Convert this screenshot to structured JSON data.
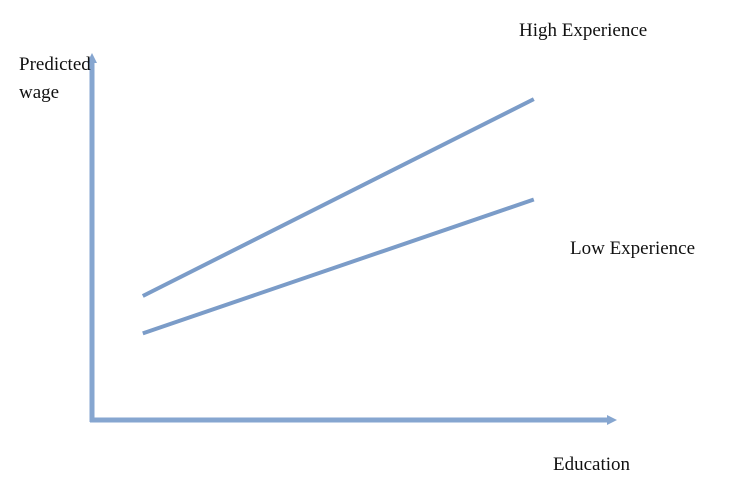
{
  "chart_data": {
    "type": "line",
    "xlabel": "Education",
    "ylabel_lines": [
      "Predicted",
      "wage"
    ],
    "series": [
      {
        "name": "High Experience",
        "x": [
          0,
          10
        ],
        "y": [
          0,
          10
        ]
      },
      {
        "name": "Low Experience",
        "x": [
          0,
          10
        ],
        "y": [
          -1.9,
          4.9
        ]
      }
    ],
    "xlim": [
      -1.3,
      12
    ],
    "ylim": [
      -6.3,
      13
    ],
    "grid": false,
    "line_color": "#7b9cc8",
    "axis_color": "#86a6d0"
  }
}
